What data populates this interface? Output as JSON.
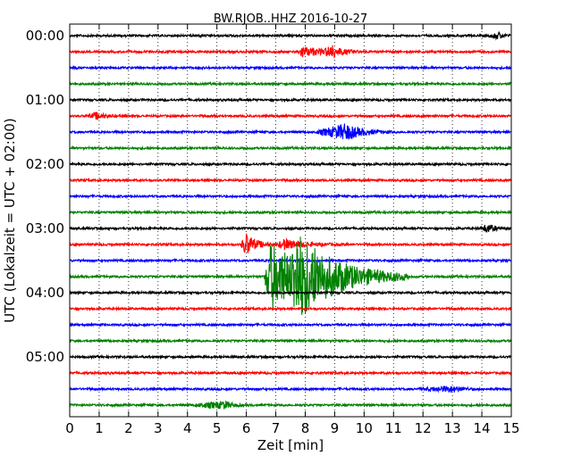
{
  "chart_data": {
    "type": "line",
    "title": "BW.RJOB..HHZ 2016-10-27",
    "xlabel": "Zeit  [min]",
    "ylabel": "UTC (Lokalzeit = UTC + 02:00)",
    "xlim": [
      0,
      15
    ],
    "x_ticks": [
      "0",
      "1",
      "2",
      "3",
      "4",
      "5",
      "6",
      "7",
      "8",
      "9",
      "10",
      "11",
      "12",
      "13",
      "14",
      "15"
    ],
    "y_tick_labels": [
      "00:00",
      "01:00",
      "02:00",
      "03:00",
      "04:00",
      "05:00"
    ],
    "trace_interval_min": 15,
    "n_traces": 24,
    "trace_colors": [
      "#000000",
      "#ff0000",
      "#0000ff",
      "#008000"
    ],
    "grid": "vertical dotted",
    "events": [
      {
        "trace": 1,
        "start_min": 7.7,
        "peak_min": 7.9,
        "end_min": 10.2,
        "amplitude": 0.6
      },
      {
        "trace": 1,
        "start_min": 8.6,
        "peak_min": 8.9,
        "end_min": 9.8,
        "amplitude": 0.7
      },
      {
        "trace": 5,
        "start_min": 0.6,
        "peak_min": 0.9,
        "end_min": 1.8,
        "amplitude": 0.4
      },
      {
        "trace": 6,
        "start_min": 8.3,
        "peak_min": 9.4,
        "end_min": 11.0,
        "amplitude": 1.0
      },
      {
        "trace": 13,
        "start_min": 5.8,
        "peak_min": 6.0,
        "end_min": 7.0,
        "amplitude": 1.4
      },
      {
        "trace": 13,
        "start_min": 7.0,
        "peak_min": 7.3,
        "end_min": 9.5,
        "amplitude": 0.6
      },
      {
        "trace": 15,
        "start_min": 6.6,
        "peak_min": 6.8,
        "end_min": 11.5,
        "amplitude": 4.2
      },
      {
        "trace": 15,
        "start_min": 7.5,
        "peak_min": 7.7,
        "end_min": 11.5,
        "amplitude": 3.6
      },
      {
        "trace": 12,
        "start_min": 13.9,
        "peak_min": 14.2,
        "end_min": 15.0,
        "amplitude": 0.5
      },
      {
        "trace": 0,
        "start_min": 14.2,
        "peak_min": 14.6,
        "end_min": 15.0,
        "amplitude": 0.4
      },
      {
        "trace": 22,
        "start_min": 11.8,
        "peak_min": 13.0,
        "end_min": 14.0,
        "amplitude": 0.35
      },
      {
        "trace": 23,
        "start_min": 4.0,
        "peak_min": 5.3,
        "end_min": 6.0,
        "amplitude": 0.45
      }
    ]
  }
}
